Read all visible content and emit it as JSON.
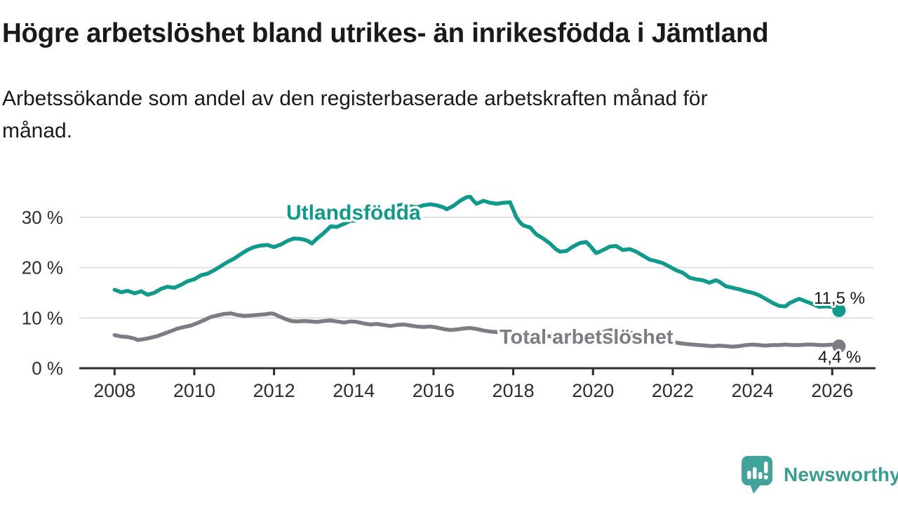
{
  "header": {
    "title": "Högre arbetslöshet bland utrikes- än inrikesfödda i Jämtland",
    "subtitle_line1": "Arbetssökande som andel av den registerbaserade arbetskraften månad för",
    "subtitle_line2": "månad."
  },
  "chart_data": {
    "type": "line",
    "title": "Högre arbetslöshet bland utrikes- än inrikesfödda i Jämtland",
    "xlabel": "",
    "ylabel": "",
    "y_unit": "%",
    "x_range": [
      2007.1,
      2027.1
    ],
    "y_range": [
      0,
      36
    ],
    "grid": "horizontal",
    "x_ticks": [
      2008,
      2010,
      2012,
      2014,
      2016,
      2018,
      2020,
      2022,
      2024,
      2026
    ],
    "y_ticks": [
      0,
      10,
      20,
      30
    ],
    "y_tick_labels": [
      "0 %",
      "10 %",
      "20 %",
      "30 %"
    ],
    "series": [
      {
        "name": "Utlandsfödda",
        "color": "#109a8b",
        "end_value": 11.5,
        "end_value_label": "11,5 %",
        "points": [
          [
            2008.0,
            15.6
          ],
          [
            2008.17,
            15.1
          ],
          [
            2008.33,
            15.4
          ],
          [
            2008.5,
            14.9
          ],
          [
            2008.67,
            15.3
          ],
          [
            2008.83,
            14.6
          ],
          [
            2009.0,
            15.0
          ],
          [
            2009.17,
            15.8
          ],
          [
            2009.33,
            16.2
          ],
          [
            2009.5,
            16.0
          ],
          [
            2009.67,
            16.6
          ],
          [
            2009.83,
            17.3
          ],
          [
            2010.0,
            17.7
          ],
          [
            2010.17,
            18.5
          ],
          [
            2010.33,
            18.8
          ],
          [
            2010.5,
            19.5
          ],
          [
            2010.67,
            20.3
          ],
          [
            2010.83,
            21.1
          ],
          [
            2011.0,
            21.8
          ],
          [
            2011.17,
            22.7
          ],
          [
            2011.33,
            23.5
          ],
          [
            2011.5,
            24.1
          ],
          [
            2011.67,
            24.4
          ],
          [
            2011.83,
            24.5
          ],
          [
            2012.0,
            24.1
          ],
          [
            2012.17,
            24.6
          ],
          [
            2012.33,
            25.3
          ],
          [
            2012.5,
            25.8
          ],
          [
            2012.67,
            25.7
          ],
          [
            2012.83,
            25.4
          ],
          [
            2012.95,
            24.8
          ],
          [
            2013.08,
            25.8
          ],
          [
            2013.25,
            26.9
          ],
          [
            2013.42,
            28.2
          ],
          [
            2013.58,
            28.1
          ],
          [
            2013.75,
            28.7
          ],
          [
            2013.92,
            29.3
          ],
          [
            2014.08,
            29.4
          ],
          [
            2014.25,
            29.9
          ],
          [
            2014.42,
            30.4
          ],
          [
            2014.58,
            30.7
          ],
          [
            2014.75,
            31.0
          ],
          [
            2014.92,
            31.6
          ],
          [
            2015.08,
            32.3
          ],
          [
            2015.25,
            32.6
          ],
          [
            2015.42,
            32.2
          ],
          [
            2015.58,
            32.0
          ],
          [
            2015.75,
            32.4
          ],
          [
            2015.92,
            32.6
          ],
          [
            2016.08,
            32.4
          ],
          [
            2016.25,
            32.0
          ],
          [
            2016.33,
            31.6
          ],
          [
            2016.5,
            32.3
          ],
          [
            2016.67,
            33.3
          ],
          [
            2016.83,
            34.0
          ],
          [
            2016.92,
            34.1
          ],
          [
            2017.0,
            33.3
          ],
          [
            2017.08,
            32.7
          ],
          [
            2017.17,
            33.0
          ],
          [
            2017.25,
            33.3
          ],
          [
            2017.42,
            32.9
          ],
          [
            2017.58,
            32.7
          ],
          [
            2017.75,
            32.9
          ],
          [
            2017.92,
            33.0
          ],
          [
            2018.0,
            31.5
          ],
          [
            2018.08,
            30.0
          ],
          [
            2018.17,
            29.0
          ],
          [
            2018.25,
            28.4
          ],
          [
            2018.33,
            28.2
          ],
          [
            2018.42,
            28.0
          ],
          [
            2018.5,
            27.3
          ],
          [
            2018.58,
            26.6
          ],
          [
            2018.75,
            25.8
          ],
          [
            2018.92,
            24.8
          ],
          [
            2019.08,
            23.6
          ],
          [
            2019.17,
            23.2
          ],
          [
            2019.33,
            23.3
          ],
          [
            2019.5,
            24.2
          ],
          [
            2019.67,
            24.9
          ],
          [
            2019.83,
            25.1
          ],
          [
            2019.92,
            24.4
          ],
          [
            2020.08,
            22.9
          ],
          [
            2020.17,
            23.2
          ],
          [
            2020.33,
            23.8
          ],
          [
            2020.42,
            24.2
          ],
          [
            2020.58,
            24.3
          ],
          [
            2020.75,
            23.5
          ],
          [
            2020.92,
            23.7
          ],
          [
            2021.08,
            23.2
          ],
          [
            2021.25,
            22.4
          ],
          [
            2021.42,
            21.6
          ],
          [
            2021.58,
            21.3
          ],
          [
            2021.75,
            20.9
          ],
          [
            2021.92,
            20.2
          ],
          [
            2022.08,
            19.5
          ],
          [
            2022.25,
            19.0
          ],
          [
            2022.42,
            18.0
          ],
          [
            2022.58,
            17.7
          ],
          [
            2022.75,
            17.5
          ],
          [
            2022.92,
            17.0
          ],
          [
            2023.08,
            17.5
          ],
          [
            2023.17,
            17.2
          ],
          [
            2023.33,
            16.3
          ],
          [
            2023.5,
            16.0
          ],
          [
            2023.67,
            15.7
          ],
          [
            2023.83,
            15.3
          ],
          [
            2024.0,
            15.0
          ],
          [
            2024.17,
            14.5
          ],
          [
            2024.33,
            13.8
          ],
          [
            2024.5,
            13.0
          ],
          [
            2024.67,
            12.4
          ],
          [
            2024.83,
            12.3
          ],
          [
            2024.92,
            12.9
          ],
          [
            2025.08,
            13.5
          ],
          [
            2025.17,
            13.8
          ],
          [
            2025.33,
            13.3
          ],
          [
            2025.5,
            12.8
          ],
          [
            2025.67,
            12.2
          ],
          [
            2025.83,
            12.3
          ],
          [
            2026.0,
            12.2
          ],
          [
            2026.17,
            11.5
          ]
        ]
      },
      {
        "name": "Total arbetslöshet",
        "color": "#7c7c84",
        "end_value": 4.4,
        "end_value_label": "4,4 %",
        "points": [
          [
            2008.0,
            6.6
          ],
          [
            2008.17,
            6.3
          ],
          [
            2008.33,
            6.2
          ],
          [
            2008.5,
            5.9
          ],
          [
            2008.58,
            5.6
          ],
          [
            2008.75,
            5.8
          ],
          [
            2008.92,
            6.1
          ],
          [
            2009.08,
            6.4
          ],
          [
            2009.25,
            6.9
          ],
          [
            2009.42,
            7.4
          ],
          [
            2009.58,
            7.9
          ],
          [
            2009.75,
            8.2
          ],
          [
            2009.92,
            8.5
          ],
          [
            2010.08,
            9.0
          ],
          [
            2010.25,
            9.6
          ],
          [
            2010.42,
            10.2
          ],
          [
            2010.58,
            10.5
          ],
          [
            2010.75,
            10.8
          ],
          [
            2010.92,
            10.9
          ],
          [
            2011.08,
            10.6
          ],
          [
            2011.25,
            10.4
          ],
          [
            2011.42,
            10.5
          ],
          [
            2011.58,
            10.6
          ],
          [
            2011.75,
            10.7
          ],
          [
            2011.92,
            10.9
          ],
          [
            2012.0,
            10.8
          ],
          [
            2012.08,
            10.5
          ],
          [
            2012.25,
            9.9
          ],
          [
            2012.42,
            9.4
          ],
          [
            2012.58,
            9.3
          ],
          [
            2012.75,
            9.4
          ],
          [
            2012.92,
            9.3
          ],
          [
            2013.08,
            9.2
          ],
          [
            2013.25,
            9.4
          ],
          [
            2013.42,
            9.5
          ],
          [
            2013.58,
            9.3
          ],
          [
            2013.75,
            9.1
          ],
          [
            2013.92,
            9.3
          ],
          [
            2014.08,
            9.2
          ],
          [
            2014.25,
            8.9
          ],
          [
            2014.42,
            8.7
          ],
          [
            2014.58,
            8.8
          ],
          [
            2014.75,
            8.6
          ],
          [
            2014.92,
            8.4
          ],
          [
            2015.08,
            8.6
          ],
          [
            2015.25,
            8.7
          ],
          [
            2015.42,
            8.5
          ],
          [
            2015.58,
            8.3
          ],
          [
            2015.75,
            8.2
          ],
          [
            2015.92,
            8.3
          ],
          [
            2016.08,
            8.1
          ],
          [
            2016.25,
            7.8
          ],
          [
            2016.42,
            7.6
          ],
          [
            2016.58,
            7.7
          ],
          [
            2016.75,
            7.9
          ],
          [
            2016.92,
            8.0
          ],
          [
            2017.08,
            7.8
          ],
          [
            2017.25,
            7.5
          ],
          [
            2017.42,
            7.3
          ],
          [
            2017.58,
            7.2
          ],
          [
            2017.75,
            7.3
          ],
          [
            2017.92,
            7.2
          ],
          [
            2018.08,
            7.0
          ],
          [
            2018.33,
            6.8
          ],
          [
            2018.58,
            6.6
          ],
          [
            2018.83,
            6.4
          ],
          [
            2019.08,
            6.2
          ],
          [
            2019.33,
            6.1
          ],
          [
            2019.58,
            6.0
          ],
          [
            2019.83,
            6.1
          ],
          [
            2020.08,
            6.5
          ],
          [
            2020.33,
            7.4
          ],
          [
            2020.5,
            7.6
          ],
          [
            2020.75,
            7.3
          ],
          [
            2021.0,
            7.0
          ],
          [
            2021.25,
            6.6
          ],
          [
            2021.5,
            6.1
          ],
          [
            2021.75,
            5.6
          ],
          [
            2022.0,
            5.2
          ],
          [
            2022.25,
            4.9
          ],
          [
            2022.5,
            4.7
          ],
          [
            2022.67,
            4.6
          ],
          [
            2022.83,
            4.5
          ],
          [
            2023.0,
            4.4
          ],
          [
            2023.17,
            4.5
          ],
          [
            2023.33,
            4.4
          ],
          [
            2023.5,
            4.3
          ],
          [
            2023.67,
            4.4
          ],
          [
            2023.83,
            4.6
          ],
          [
            2024.0,
            4.7
          ],
          [
            2024.17,
            4.6
          ],
          [
            2024.33,
            4.5
          ],
          [
            2024.5,
            4.6
          ],
          [
            2024.67,
            4.6
          ],
          [
            2024.83,
            4.7
          ],
          [
            2025.0,
            4.6
          ],
          [
            2025.17,
            4.6
          ],
          [
            2025.33,
            4.7
          ],
          [
            2025.5,
            4.7
          ],
          [
            2025.67,
            4.6
          ],
          [
            2025.83,
            4.6
          ],
          [
            2026.0,
            4.7
          ],
          [
            2026.17,
            4.4
          ]
        ]
      }
    ],
    "colors": {
      "grid": "#d8d8d8",
      "axis": "#2d2d2d",
      "tick_text": "#2e2e2e",
      "value_label_text": "#191919"
    }
  },
  "footer": {
    "brand": "Newsworthy",
    "brand_color": "#3a9b93",
    "logo_icon": "speech-bubble-bar-chart-icon",
    "logo_fill": "#42a39a"
  }
}
